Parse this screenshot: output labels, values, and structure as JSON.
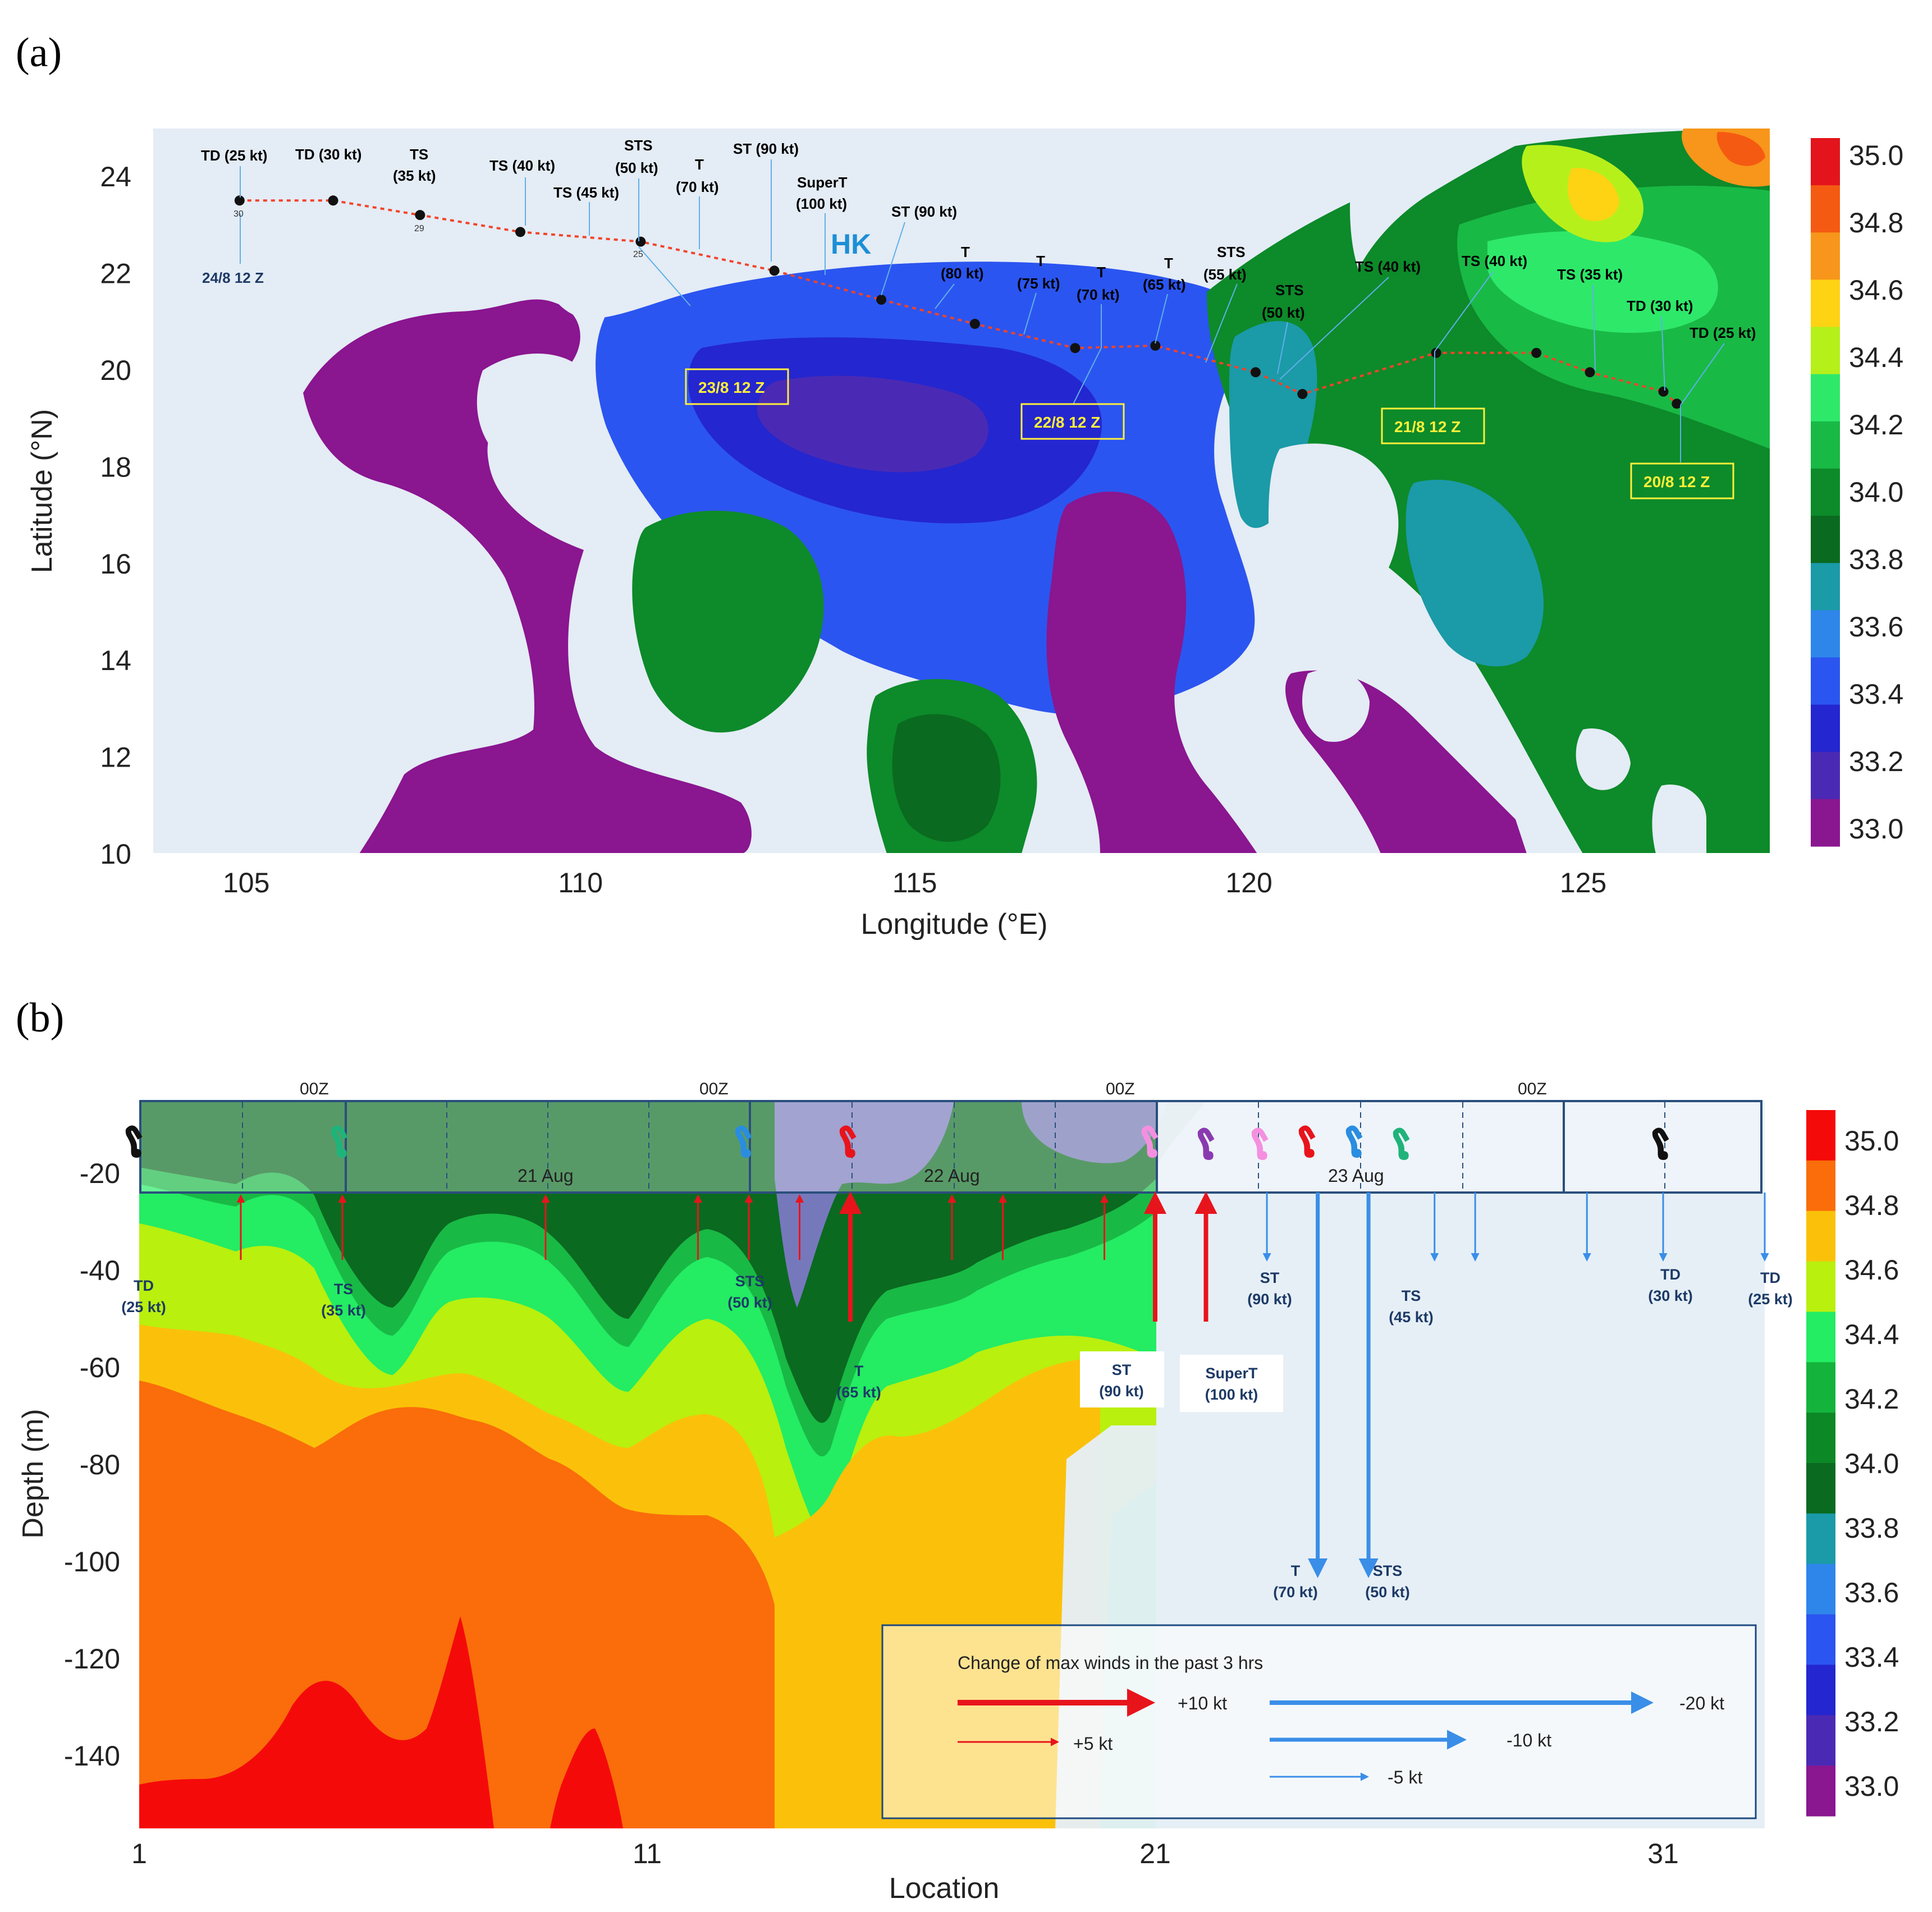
{
  "panels": {
    "a": "(a)",
    "b": "(b)"
  },
  "chart_data": [
    {
      "type": "heatmap",
      "panel": "(a)",
      "xlabel": "Longitude (°E)",
      "ylabel": "Latitude (°N)",
      "xlim": [
        103.6,
        127.8
      ],
      "ylim": [
        10,
        25
      ],
      "xticks": [
        105,
        110,
        115,
        120,
        125
      ],
      "yticks": [
        10,
        12,
        14,
        16,
        18,
        20,
        22,
        24
      ],
      "colorbar": {
        "ticks": [
          "35.0",
          "34.8",
          "34.6",
          "34.4",
          "34.2",
          "34.0",
          "33.8",
          "33.6",
          "33.4",
          "33.2",
          "33.0"
        ],
        "colors": [
          "#e4141c",
          "#f55a12",
          "#f7961a",
          "#fdd313",
          "#b6f01b",
          "#2ee86a",
          "#19b945",
          "#0d8a2a",
          "#0a6a20",
          "#1b9aa8",
          "#2f86ea",
          "#2b55f0",
          "#2426d0",
          "#4a2ab4",
          "#8a1690"
        ]
      },
      "places": {
        "hk": "HK"
      },
      "track": {
        "points": [
          {
            "lon": 104.9,
            "lat": 23.5
          },
          {
            "lon": 106.3,
            "lat": 23.5
          },
          {
            "lon": 107.6,
            "lat": 23.2
          },
          {
            "lon": 109.1,
            "lat": 22.85
          },
          {
            "lon": 110.9,
            "lat": 22.65
          },
          {
            "lon": 112.9,
            "lat": 22.05
          },
          {
            "lon": 114.5,
            "lat": 21.45
          },
          {
            "lon": 115.9,
            "lat": 20.95
          },
          {
            "lon": 117.4,
            "lat": 20.45
          },
          {
            "lon": 118.6,
            "lat": 20.5
          },
          {
            "lon": 120.1,
            "lat": 19.95
          },
          {
            "lon": 120.8,
            "lat": 19.5
          },
          {
            "lon": 122.8,
            "lat": 20.35
          },
          {
            "lon": 124.3,
            "lat": 20.35
          },
          {
            "lon": 125.1,
            "lat": 19.95
          },
          {
            "lon": 126.2,
            "lat": 19.55
          },
          {
            "lon": 126.4,
            "lat": 19.3
          }
        ],
        "labels": [
          {
            "text": "TD (25 kt)",
            "color": "#1d3a66"
          },
          {
            "text": "TD (30 kt)",
            "color": "#1d3a66"
          },
          {
            "text": "TS",
            "color": "#1d3a66"
          },
          {
            "text": "(35 kt)",
            "color": "#1d3a66"
          },
          {
            "text": "TS (40 kt)",
            "color": "#1d3a66"
          },
          {
            "text": "TS (45 kt)",
            "color": "#1d3a66"
          },
          {
            "text": "STS",
            "color": "#1d3a66"
          },
          {
            "text": "(50 kt)",
            "color": "#1d3a66"
          },
          {
            "text": "T",
            "color": "#1d3a66"
          },
          {
            "text": "(70 kt)",
            "color": "#1d3a66"
          },
          {
            "text": "ST (90 kt)",
            "color": "#1d3a66"
          },
          {
            "text": "SuperT",
            "color": "#1d3a66"
          },
          {
            "text": "(100 kt)",
            "color": "#1d3a66"
          },
          {
            "text": "ST (90 kt)",
            "color": "#ffffff"
          },
          {
            "text": "T",
            "color": "#ffef3a"
          },
          {
            "text": "(80 kt)",
            "color": "#ffef3a"
          },
          {
            "text": "T",
            "color": "#ffef3a"
          },
          {
            "text": "(75 kt)",
            "color": "#ffef3a"
          },
          {
            "text": "T",
            "color": "#ffef3a"
          },
          {
            "text": "(70 kt)",
            "color": "#ffef3a"
          },
          {
            "text": "T",
            "color": "#ffef3a"
          },
          {
            "text": "(65 kt)",
            "color": "#ffef3a"
          },
          {
            "text": "STS",
            "color": "#ffef3a"
          },
          {
            "text": "(55 kt)",
            "color": "#ffef3a"
          },
          {
            "text": "STS",
            "color": "#ffef3a"
          },
          {
            "text": "(50 kt)",
            "color": "#ffef3a"
          },
          {
            "text": "TS (40 kt)",
            "color": "#ffef3a"
          },
          {
            "text": "TS (40 kt)",
            "color": "#ffef3a"
          },
          {
            "text": "TS (35 kt)",
            "color": "#ffef3a"
          },
          {
            "text": "TD (30 kt)",
            "color": "#ffef3a"
          },
          {
            "text": "TD (25 kt)",
            "color": "#ffef3a"
          }
        ],
        "small_numbers": [
          "30",
          "29",
          "25"
        ]
      },
      "time_labels": [
        {
          "text": "24/8 12 Z",
          "color": "#1d3a66",
          "boxed": false
        },
        {
          "text": "23/8 12 Z",
          "color": "#ffef3a",
          "boxed": true
        },
        {
          "text": "22/8 12 Z",
          "color": "#ffef3a",
          "boxed": true
        },
        {
          "text": "21/8 12 Z",
          "color": "#ffef3a",
          "boxed": true
        },
        {
          "text": "20/8 12 Z",
          "color": "#ffef3a",
          "boxed": true
        }
      ]
    },
    {
      "type": "heatmap",
      "panel": "(b)",
      "xlabel": "Location",
      "ylabel": "Depth (m)",
      "xlim": [
        1,
        33
      ],
      "ylim": [
        -155,
        -5
      ],
      "xticks": [
        1,
        11,
        21,
        31
      ],
      "yticks": [
        -20,
        -40,
        -60,
        -80,
        -100,
        -120,
        -140
      ],
      "colorbar": {
        "ticks": [
          "35.0",
          "34.8",
          "34.6",
          "34.4",
          "34.2",
          "34.0",
          "33.8",
          "33.6",
          "33.4",
          "33.2",
          "33.0"
        ],
        "colors": [
          "#f50a0a",
          "#fa6d0a",
          "#fbc10a",
          "#b9f00e",
          "#24ec63",
          "#14b43c",
          "#0c8826",
          "#0a6a20",
          "#1b9aa8",
          "#2f86ea",
          "#2b55f0",
          "#2426d0",
          "#4a2ab4",
          "#8a1690"
        ]
      },
      "time_axis": {
        "days": [
          "21 Aug",
          "22 Aug",
          "23 Aug"
        ],
        "oz": [
          "00Z",
          "00Z",
          "00Z",
          "00Z"
        ]
      },
      "intensity_labels": [
        {
          "l1": "TD",
          "l2": "(25 kt)"
        },
        {
          "l1": "TS",
          "l2": "(35 kt)"
        },
        {
          "l1": "STS",
          "l2": "(50 kt)"
        },
        {
          "l1": "T",
          "l2": "(65 kt)"
        },
        {
          "l1": "ST",
          "l2": "(90 kt)"
        },
        {
          "l1": "SuperT",
          "l2": "(100 kt)"
        },
        {
          "l1": "ST",
          "l2": "(90 kt)"
        },
        {
          "l1": "T",
          "l2": "(70 kt)"
        },
        {
          "l1": "STS",
          "l2": "(50 kt)"
        },
        {
          "l1": "TS",
          "l2": "(45 kt)"
        },
        {
          "l1": "TD",
          "l2": "(30 kt)"
        },
        {
          "l1": "TD",
          "l2": "(25 kt)"
        }
      ],
      "symbols": [
        "ໂ",
        "ໂ",
        "ໂ",
        "ໂ",
        "ໂ",
        "ໂ",
        "ໂ",
        "ໂ",
        "ໂ",
        "ໂ",
        "ໂ"
      ],
      "wind_change": [
        {
          "location": 3.0,
          "change_kt": 5
        },
        {
          "location": 5.0,
          "change_kt": 5
        },
        {
          "location": 9.0,
          "change_kt": 5
        },
        {
          "location": 12.0,
          "change_kt": 5
        },
        {
          "location": 13.0,
          "change_kt": 5
        },
        {
          "location": 14.0,
          "change_kt": 5
        },
        {
          "location": 15.0,
          "change_kt": 10
        },
        {
          "location": 17.0,
          "change_kt": 5
        },
        {
          "location": 18.0,
          "change_kt": 5
        },
        {
          "location": 20.0,
          "change_kt": 5
        },
        {
          "location": 21.0,
          "change_kt": 10
        },
        {
          "location": 22.0,
          "change_kt": 10
        },
        {
          "location": 23.2,
          "change_kt": -5
        },
        {
          "location": 24.2,
          "change_kt": -20
        },
        {
          "location": 25.2,
          "change_kt": -20
        },
        {
          "location": 26.5,
          "change_kt": -5
        },
        {
          "location": 27.3,
          "change_kt": -5
        },
        {
          "location": 29.5,
          "change_kt": -5
        },
        {
          "location": 31.0,
          "change_kt": -5
        },
        {
          "location": 33.0,
          "change_kt": -5
        }
      ],
      "legend": {
        "title": "Change of max winds in the past 3 hrs",
        "items": [
          "+10 kt",
          "+5 kt",
          "-20 kt",
          "-10 kt",
          "-5 kt"
        ]
      }
    }
  ]
}
